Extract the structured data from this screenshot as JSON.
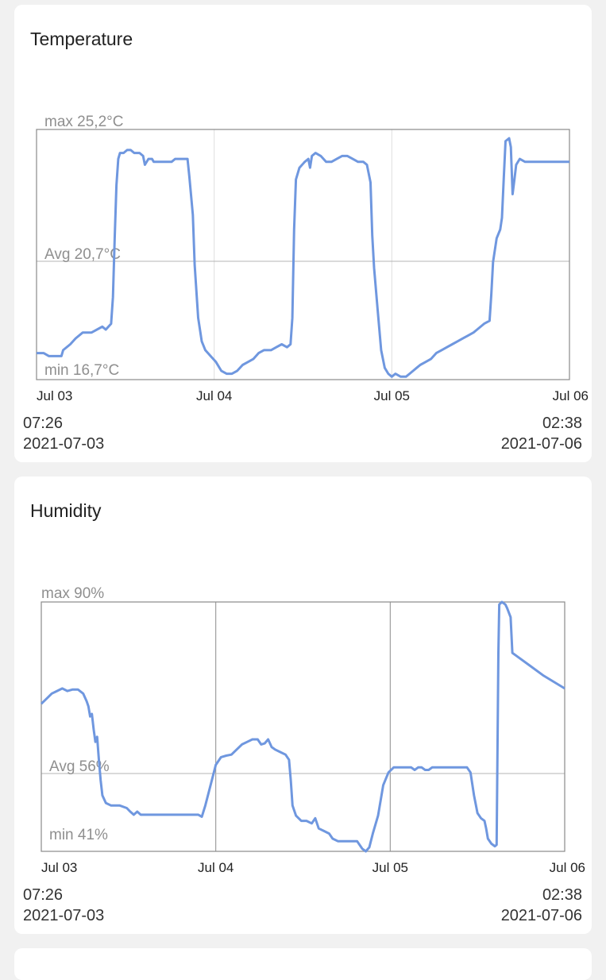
{
  "colors": {
    "line": "#6f97df",
    "frame": "#8a8a8a",
    "grid": "#c8c8c8",
    "label": "#8f8f8f",
    "tick": "#222222"
  },
  "chart_data": [
    {
      "type": "line",
      "title": "Temperature",
      "x_ticks": [
        "Jul 03",
        "Jul 04",
        "Jul 05",
        "Jul 06"
      ],
      "max_label": "max 25,2°C",
      "avg_label": "Avg 20,7°C",
      "min_label": "min 16,7°C",
      "ylim": [
        16.7,
        25.2
      ],
      "xlim": [
        0,
        3
      ],
      "avg": 20.7,
      "grid": "vertical day lines, horizontal avg line",
      "start_time": "07:26",
      "start_date": "2021-07-03",
      "end_time": "02:38",
      "end_date": "2021-07-06",
      "series": [
        {
          "points": [
            [
              0.0,
              17.6
            ],
            [
              0.04,
              17.6
            ],
            [
              0.07,
              17.5
            ],
            [
              0.14,
              17.5
            ],
            [
              0.15,
              17.7
            ],
            [
              0.19,
              17.9
            ],
            [
              0.22,
              18.1
            ],
            [
              0.26,
              18.3
            ],
            [
              0.31,
              18.3
            ],
            [
              0.37,
              18.5
            ],
            [
              0.39,
              18.4
            ],
            [
              0.42,
              18.6
            ],
            [
              0.43,
              19.5
            ],
            [
              0.44,
              21.5
            ],
            [
              0.45,
              23.3
            ],
            [
              0.46,
              24.2
            ],
            [
              0.47,
              24.4
            ],
            [
              0.49,
              24.4
            ],
            [
              0.51,
              24.5
            ],
            [
              0.53,
              24.5
            ],
            [
              0.55,
              24.4
            ],
            [
              0.58,
              24.4
            ],
            [
              0.6,
              24.3
            ],
            [
              0.61,
              24.0
            ],
            [
              0.63,
              24.2
            ],
            [
              0.65,
              24.2
            ],
            [
              0.66,
              24.1
            ],
            [
              0.69,
              24.1
            ],
            [
              0.73,
              24.1
            ],
            [
              0.76,
              24.1
            ],
            [
              0.78,
              24.2
            ],
            [
              0.81,
              24.2
            ],
            [
              0.85,
              24.2
            ],
            [
              0.86,
              23.6
            ],
            [
              0.88,
              22.3
            ],
            [
              0.89,
              20.6
            ],
            [
              0.91,
              18.8
            ],
            [
              0.93,
              18.0
            ],
            [
              0.95,
              17.7
            ],
            [
              0.98,
              17.5
            ],
            [
              1.01,
              17.3
            ],
            [
              1.04,
              17.0
            ],
            [
              1.07,
              16.9
            ],
            [
              1.1,
              16.9
            ],
            [
              1.13,
              17.0
            ],
            [
              1.16,
              17.2
            ],
            [
              1.19,
              17.3
            ],
            [
              1.22,
              17.4
            ],
            [
              1.25,
              17.6
            ],
            [
              1.28,
              17.7
            ],
            [
              1.32,
              17.7
            ],
            [
              1.35,
              17.8
            ],
            [
              1.38,
              17.9
            ],
            [
              1.41,
              17.8
            ],
            [
              1.43,
              17.9
            ],
            [
              1.44,
              18.8
            ],
            [
              1.45,
              21.8
            ],
            [
              1.46,
              23.5
            ],
            [
              1.48,
              23.9
            ],
            [
              1.51,
              24.1
            ],
            [
              1.53,
              24.2
            ],
            [
              1.54,
              23.9
            ],
            [
              1.55,
              24.3
            ],
            [
              1.57,
              24.4
            ],
            [
              1.6,
              24.3
            ],
            [
              1.63,
              24.1
            ],
            [
              1.66,
              24.1
            ],
            [
              1.69,
              24.2
            ],
            [
              1.72,
              24.3
            ],
            [
              1.75,
              24.3
            ],
            [
              1.78,
              24.2
            ],
            [
              1.81,
              24.1
            ],
            [
              1.84,
              24.1
            ],
            [
              1.86,
              24.0
            ],
            [
              1.88,
              23.4
            ],
            [
              1.89,
              21.6
            ],
            [
              1.9,
              20.5
            ],
            [
              1.92,
              19.1
            ],
            [
              1.94,
              17.7
            ],
            [
              1.96,
              17.1
            ],
            [
              1.98,
              16.9
            ],
            [
              2.0,
              16.8
            ],
            [
              2.02,
              16.9
            ],
            [
              2.05,
              16.8
            ],
            [
              2.08,
              16.8
            ],
            [
              2.1,
              16.9
            ],
            [
              2.12,
              17.0
            ],
            [
              2.14,
              17.1
            ],
            [
              2.16,
              17.2
            ],
            [
              2.19,
              17.3
            ],
            [
              2.22,
              17.4
            ],
            [
              2.25,
              17.6
            ],
            [
              2.28,
              17.7
            ],
            [
              2.31,
              17.8
            ],
            [
              2.34,
              17.9
            ],
            [
              2.37,
              18.0
            ],
            [
              2.4,
              18.1
            ],
            [
              2.43,
              18.2
            ],
            [
              2.46,
              18.3
            ],
            [
              2.48,
              18.4
            ],
            [
              2.52,
              18.6
            ],
            [
              2.55,
              18.7
            ],
            [
              2.56,
              19.6
            ],
            [
              2.57,
              20.7
            ],
            [
              2.59,
              21.5
            ],
            [
              2.61,
              21.8
            ],
            [
              2.62,
              22.2
            ],
            [
              2.63,
              23.5
            ],
            [
              2.64,
              24.8
            ],
            [
              2.66,
              24.9
            ],
            [
              2.67,
              24.6
            ],
            [
              2.68,
              23.0
            ],
            [
              2.69,
              23.5
            ],
            [
              2.7,
              24.0
            ],
            [
              2.72,
              24.2
            ],
            [
              2.75,
              24.1
            ],
            [
              2.8,
              24.1
            ],
            [
              2.9,
              24.1
            ],
            [
              3.0,
              24.1
            ]
          ]
        }
      ]
    },
    {
      "type": "line",
      "title": "Humidity",
      "x_ticks": [
        "Jul 03",
        "Jul 04",
        "Jul 05",
        "Jul 06"
      ],
      "max_label": "max 90%",
      "avg_label": "Avg 56%",
      "min_label": "min 41%",
      "ylim": [
        41,
        90
      ],
      "xlim": [
        0,
        3
      ],
      "avg": 56,
      "grid": "vertical day lines, horizontal avg line",
      "start_time": "07:26",
      "start_date": "2021-07-03",
      "end_time": "02:38",
      "end_date": "2021-07-06",
      "series": [
        {
          "points": [
            [
              0.0,
              70.0
            ],
            [
              0.03,
              71.0
            ],
            [
              0.06,
              72.0
            ],
            [
              0.09,
              72.5
            ],
            [
              0.12,
              73.0
            ],
            [
              0.15,
              72.5
            ],
            [
              0.18,
              72.8
            ],
            [
              0.21,
              72.8
            ],
            [
              0.24,
              72.0
            ],
            [
              0.26,
              70.5
            ],
            [
              0.27,
              69.5
            ],
            [
              0.28,
              67.5
            ],
            [
              0.29,
              68.0
            ],
            [
              0.3,
              65.0
            ],
            [
              0.31,
              62.5
            ],
            [
              0.32,
              63.5
            ],
            [
              0.33,
              59.0
            ],
            [
              0.34,
              55.0
            ],
            [
              0.35,
              52.0
            ],
            [
              0.37,
              50.5
            ],
            [
              0.4,
              50.0
            ],
            [
              0.45,
              50.0
            ],
            [
              0.49,
              49.5
            ],
            [
              0.51,
              48.8
            ],
            [
              0.53,
              48.2
            ],
            [
              0.55,
              48.8
            ],
            [
              0.57,
              48.2
            ],
            [
              0.62,
              48.2
            ],
            [
              0.7,
              48.2
            ],
            [
              0.9,
              48.2
            ],
            [
              0.92,
              47.8
            ],
            [
              0.94,
              50.0
            ],
            [
              0.97,
              54.0
            ],
            [
              1.0,
              58.0
            ],
            [
              1.03,
              59.5
            ],
            [
              1.06,
              59.8
            ],
            [
              1.09,
              60.0
            ],
            [
              1.12,
              61.0
            ],
            [
              1.15,
              62.0
            ],
            [
              1.18,
              62.5
            ],
            [
              1.21,
              63.0
            ],
            [
              1.24,
              63.0
            ],
            [
              1.26,
              62.0
            ],
            [
              1.28,
              62.2
            ],
            [
              1.3,
              63.0
            ],
            [
              1.32,
              61.5
            ],
            [
              1.34,
              61.0
            ],
            [
              1.37,
              60.5
            ],
            [
              1.4,
              60.0
            ],
            [
              1.42,
              59.0
            ],
            [
              1.43,
              55.0
            ],
            [
              1.44,
              50.0
            ],
            [
              1.46,
              48.0
            ],
            [
              1.49,
              47.0
            ],
            [
              1.52,
              47.0
            ],
            [
              1.55,
              46.5
            ],
            [
              1.57,
              47.5
            ],
            [
              1.59,
              45.5
            ],
            [
              1.62,
              45.0
            ],
            [
              1.65,
              44.5
            ],
            [
              1.67,
              43.5
            ],
            [
              1.7,
              43.0
            ],
            [
              1.75,
              43.0
            ],
            [
              1.81,
              43.0
            ],
            [
              1.83,
              42.0
            ],
            [
              1.84,
              41.5
            ],
            [
              1.86,
              41.0
            ],
            [
              1.88,
              41.8
            ],
            [
              1.9,
              44.5
            ],
            [
              1.93,
              48.0
            ],
            [
              1.96,
              54.0
            ],
            [
              1.99,
              56.5
            ],
            [
              2.02,
              57.5
            ],
            [
              2.06,
              57.5
            ],
            [
              2.12,
              57.5
            ],
            [
              2.14,
              57.0
            ],
            [
              2.16,
              57.5
            ],
            [
              2.18,
              57.5
            ],
            [
              2.2,
              57.0
            ],
            [
              2.22,
              57.0
            ],
            [
              2.24,
              57.5
            ],
            [
              2.27,
              57.5
            ],
            [
              2.35,
              57.5
            ],
            [
              2.44,
              57.5
            ],
            [
              2.46,
              56.5
            ],
            [
              2.48,
              52.0
            ],
            [
              2.5,
              48.5
            ],
            [
              2.52,
              47.5
            ],
            [
              2.54,
              47.0
            ],
            [
              2.55,
              45.5
            ],
            [
              2.56,
              43.5
            ],
            [
              2.58,
              42.5
            ],
            [
              2.6,
              42.0
            ],
            [
              2.61,
              42.3
            ],
            [
              2.62,
              80.0
            ],
            [
              2.625,
              89.5
            ],
            [
              2.64,
              90.0
            ],
            [
              2.66,
              89.5
            ],
            [
              2.67,
              88.8
            ],
            [
              2.69,
              87.0
            ],
            [
              2.7,
              80.0
            ],
            [
              2.72,
              79.5
            ],
            [
              2.8,
              77.5
            ],
            [
              2.88,
              75.5
            ],
            [
              3.0,
              73.0
            ]
          ]
        }
      ]
    }
  ]
}
